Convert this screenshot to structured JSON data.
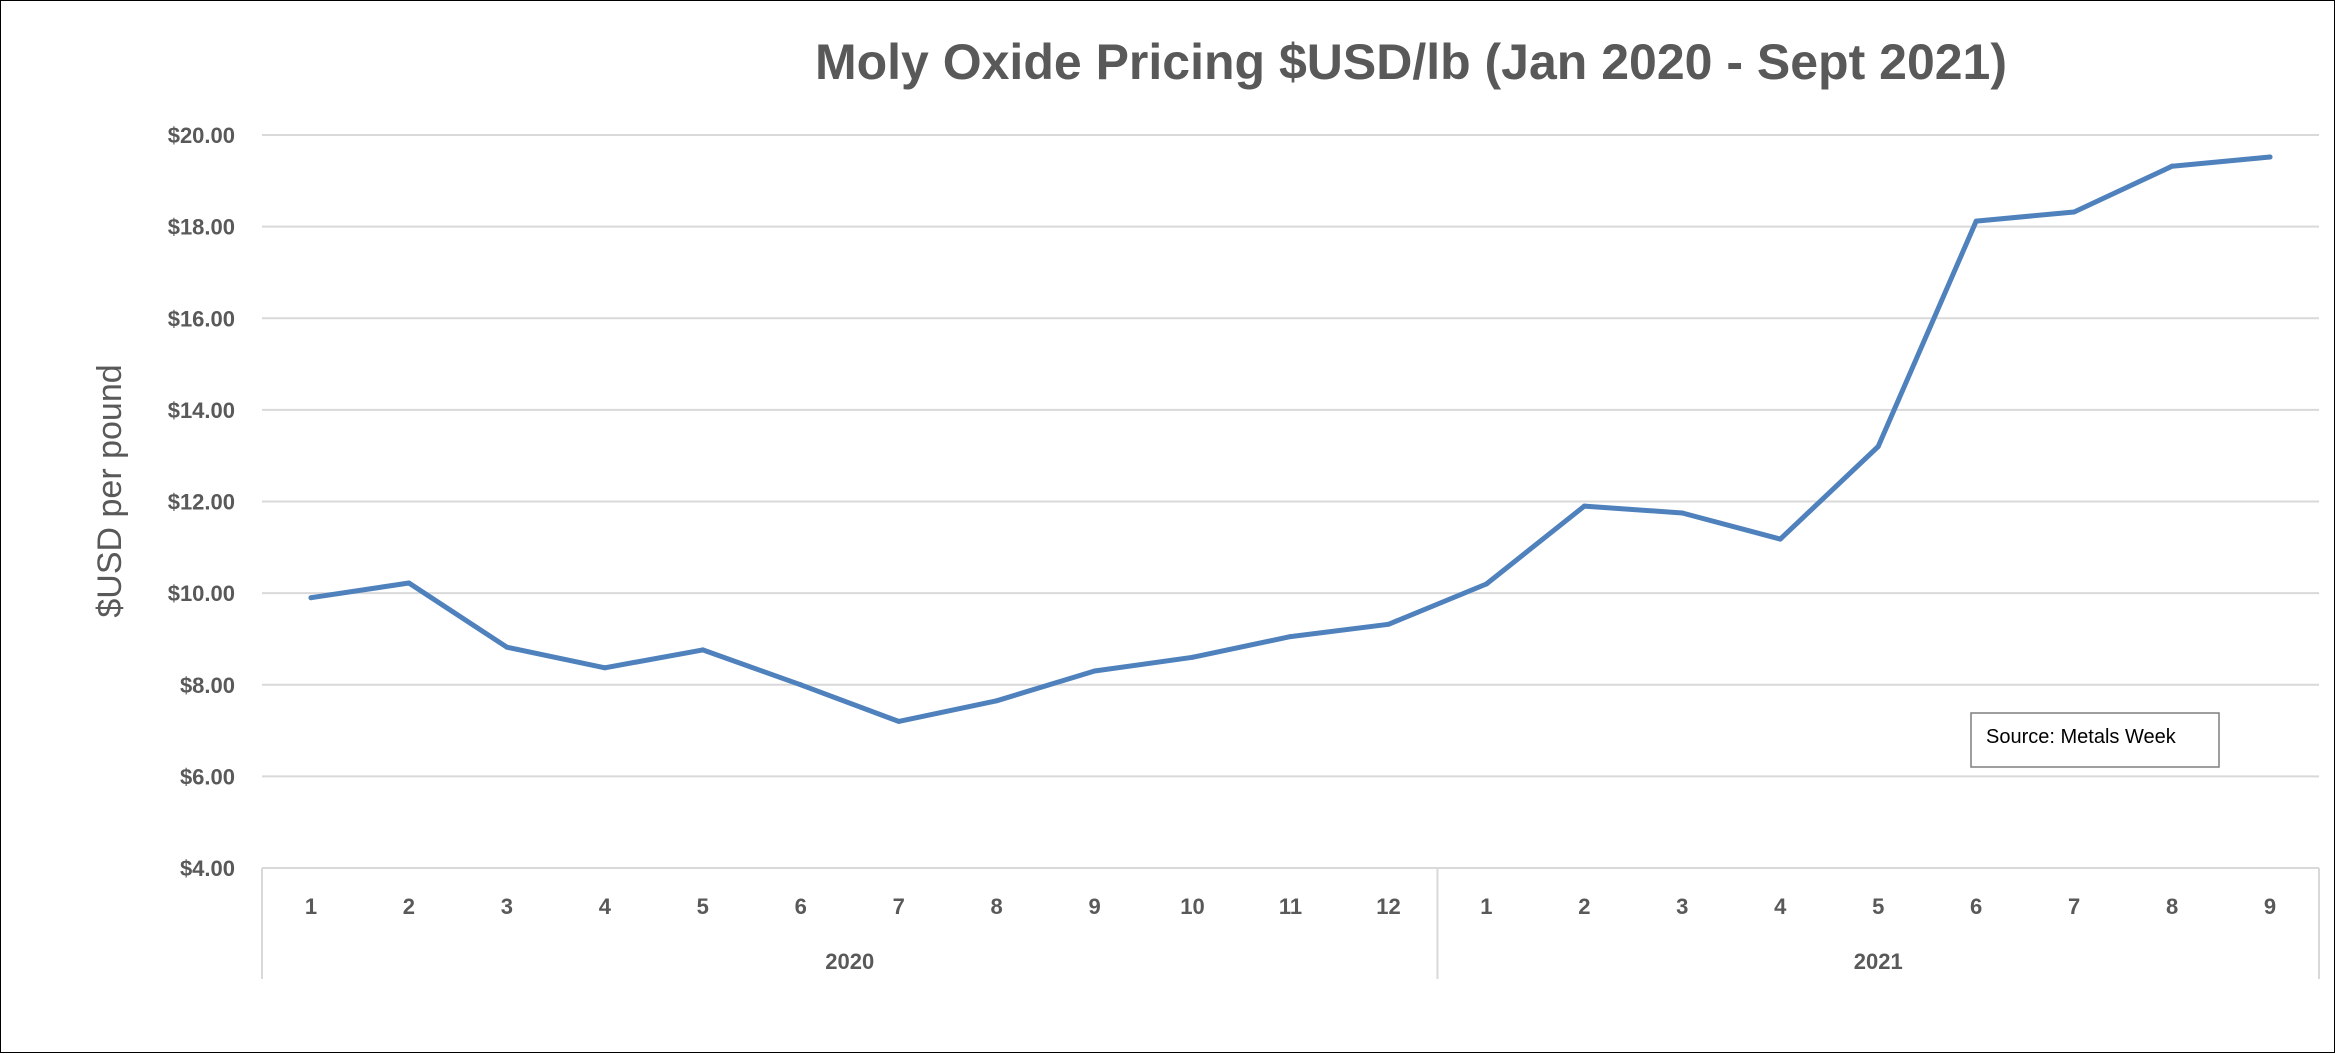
{
  "chart_data": {
    "type": "line",
    "title": "Moly Oxide Pricing $USD/lb (Jan 2020 - Sept 2021)",
    "xlabel": "",
    "ylabel": "$USD per pound",
    "ylim": [
      4,
      20
    ],
    "y_ticks": [
      4,
      6,
      8,
      10,
      12,
      14,
      16,
      18,
      20
    ],
    "y_tick_labels": [
      "$4.00",
      "$6.00",
      "$8.00",
      "$10.00",
      "$12.00",
      "$14.00",
      "$16.00",
      "$18.00",
      "$20.00"
    ],
    "grid": true,
    "legend": "none",
    "categories": [
      "1",
      "2",
      "3",
      "4",
      "5",
      "6",
      "7",
      "8",
      "9",
      "10",
      "11",
      "12",
      "1",
      "2",
      "3",
      "4",
      "5",
      "6",
      "7",
      "8",
      "9"
    ],
    "groups": [
      {
        "label": "2020",
        "count": 12
      },
      {
        "label": "2021",
        "count": 9
      }
    ],
    "series": [
      {
        "color": "#4f81bd",
        "values": [
          9.9,
          10.22,
          8.82,
          8.37,
          8.76,
          8.0,
          7.2,
          7.65,
          8.3,
          8.6,
          9.05,
          9.32,
          10.2,
          11.9,
          11.75,
          11.18,
          13.2,
          18.12,
          18.32,
          19.32,
          19.52
        ]
      }
    ],
    "annotations": [
      "Source: Metals Week"
    ]
  }
}
